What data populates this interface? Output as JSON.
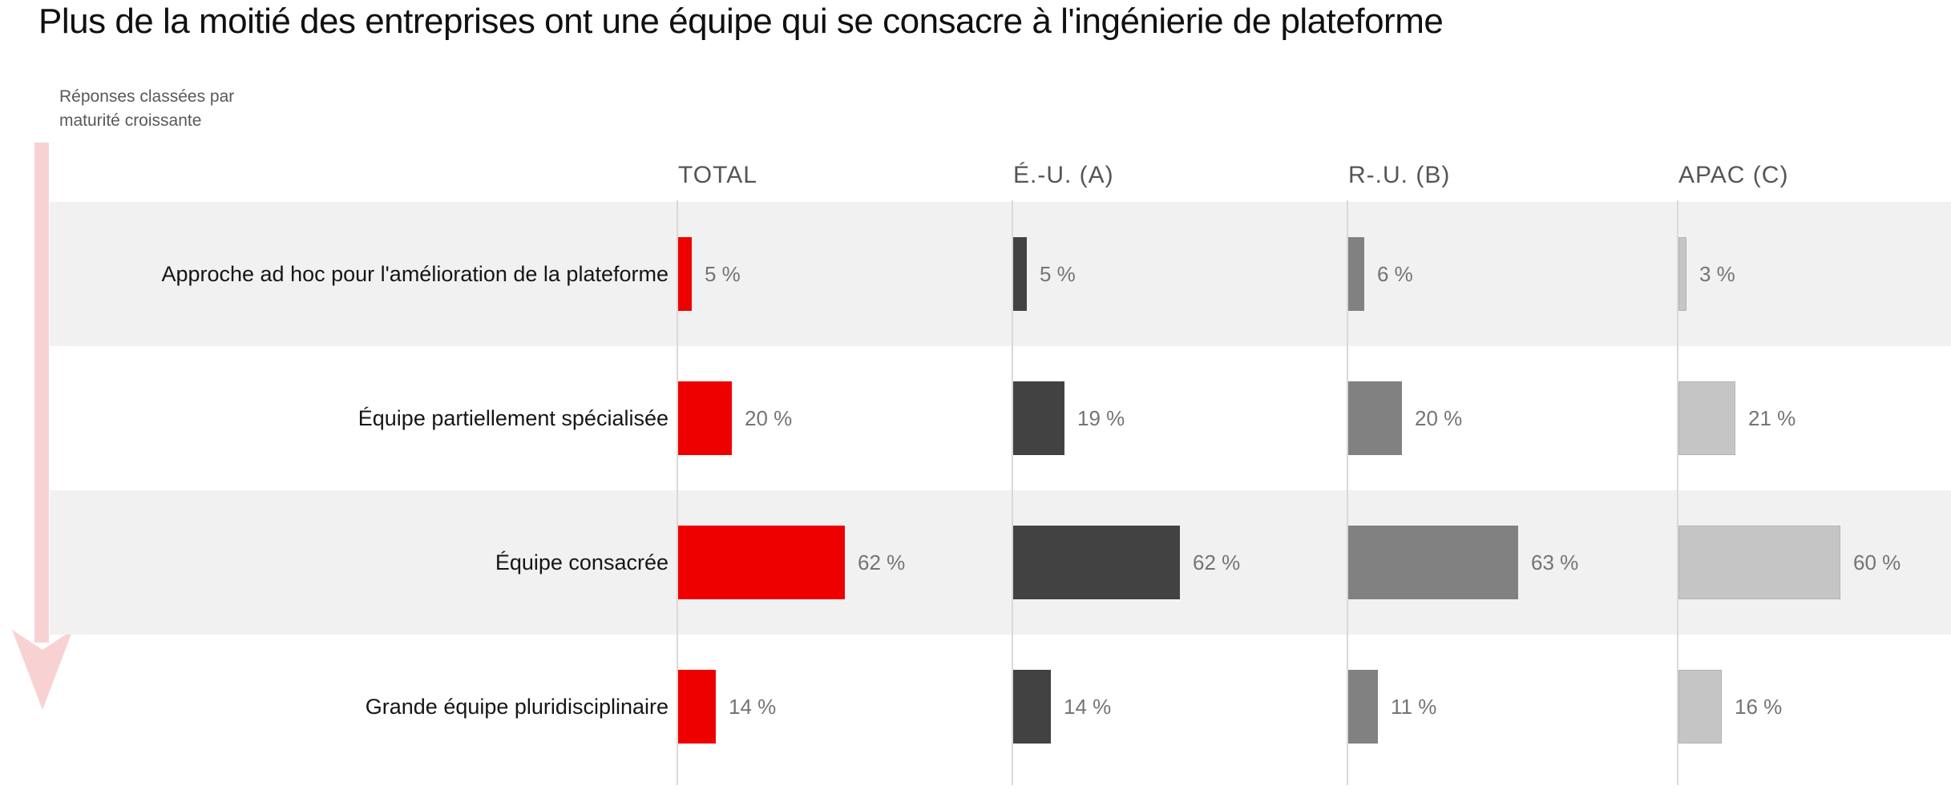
{
  "title": "Plus de la moitié des entreprises ont une équipe qui se consacre à l'ingénierie de plateforme",
  "annotation_lines": [
    "Réponses classées par",
    "maturité croissante"
  ],
  "chart_data": {
    "type": "bar",
    "orientation": "horizontal",
    "unit": "%",
    "xlim": [
      0,
      100
    ],
    "ordering_note": "Réponses classées par maturité croissante",
    "categories": [
      "Approche ad hoc pour l'amélioration de la plateforme",
      "Équipe partiellement spécialisée",
      "Équipe consacrée",
      "Grande équipe pluridisciplinaire"
    ],
    "series": [
      {
        "name": "TOTAL",
        "color": "#ee0000",
        "outline": false,
        "values": [
          5,
          20,
          62,
          14
        ],
        "labels": [
          "5 %",
          "20 %",
          "62 %",
          "14 %"
        ]
      },
      {
        "name": "É.-U. (A)",
        "color": "#424242",
        "outline": false,
        "values": [
          5,
          19,
          62,
          14
        ],
        "labels": [
          "5 %",
          "19 %",
          "62 %",
          "14 %"
        ]
      },
      {
        "name": "R-.U. (B)",
        "color": "#818181",
        "outline": false,
        "values": [
          6,
          20,
          63,
          11
        ],
        "labels": [
          "6 %",
          "20 %",
          "63 %",
          "11 %"
        ]
      },
      {
        "name": "APAC (C)",
        "color": "#c5c5c5",
        "outline": true,
        "values": [
          3,
          21,
          60,
          16
        ],
        "labels": [
          "3 %",
          "21 %",
          "60 %",
          "16 %"
        ]
      }
    ]
  },
  "colors": {
    "accent_red": "#ee0000",
    "row_band_gray": "#f1f1f1",
    "arrow_pink": "#f8d2d2",
    "baseline_gray": "#d9d9d9"
  }
}
